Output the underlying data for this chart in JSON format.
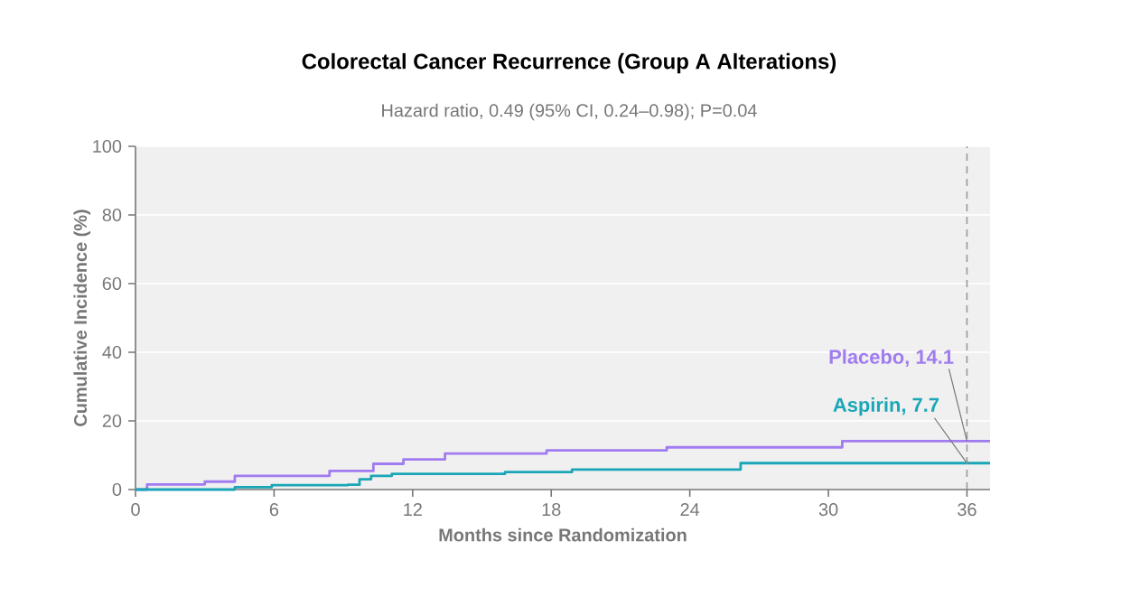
{
  "chart_data": {
    "type": "step",
    "title": "Colorectal Cancer Recurrence (Group A Alterations)",
    "subtitle": "Hazard ratio, 0.49 (95% CI, 0.24–0.98); P=0.04",
    "xlabel": "Months since Randomization",
    "ylabel": "Cumulative Incidence (%)",
    "xlim": [
      0,
      37
    ],
    "xticks": [
      0,
      6,
      12,
      18,
      24,
      30,
      36
    ],
    "ylim": [
      0,
      100
    ],
    "yticks": [
      0,
      20,
      40,
      60,
      80,
      100
    ],
    "grid": "y",
    "marker": "none",
    "line_style": "solid",
    "series": [
      {
        "color": "#a07cf0",
        "x": [
          0,
          0.5,
          3,
          4.3,
          8.4,
          10.3,
          11.6,
          13.4,
          17.8,
          23,
          30.6,
          37
        ],
        "values": [
          0,
          1.5,
          2.3,
          4,
          5.4,
          7.5,
          8.8,
          10.5,
          11.4,
          12.3,
          14.1,
          14.1
        ]
      },
      {
        "color": "#1aa6b7",
        "x": [
          0,
          4.3,
          5.9,
          9.2,
          9.7,
          10.2,
          11.1,
          16,
          18.9,
          26.2,
          37
        ],
        "values": [
          0,
          0.7,
          1.3,
          1.4,
          3,
          4,
          4.6,
          5.1,
          5.8,
          7.7,
          7.7
        ]
      }
    ],
    "ref_lines": [
      {
        "axis": "x",
        "value": 36,
        "color": "#999999",
        "line_style": "dashed"
      }
    ],
    "annotations": [
      {
        "text": "Placebo, 14.1",
        "x": 36,
        "y": 14.1
      },
      {
        "text": "Aspirin, 7.7",
        "x": 36,
        "y": 7.7
      }
    ]
  }
}
